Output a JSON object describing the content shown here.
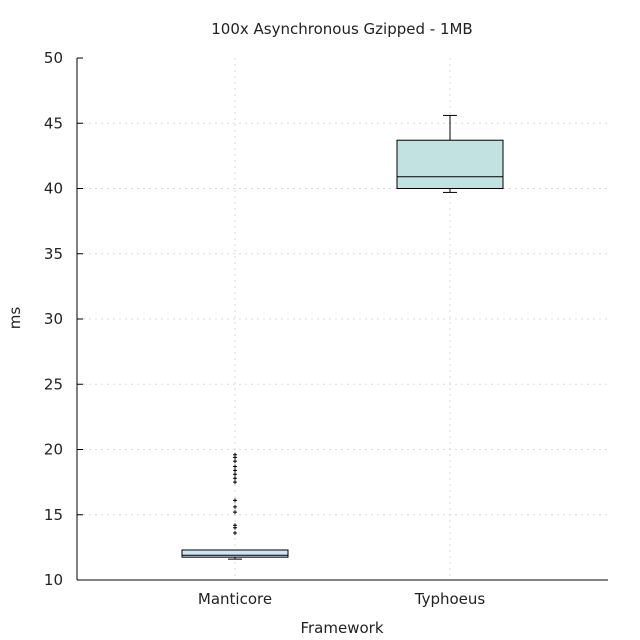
{
  "chart_data": {
    "type": "box",
    "title": "100x Asynchronous Gzipped - 1MB",
    "xlabel": "Framework",
    "ylabel": "ms",
    "categories": [
      "Manticore",
      "Typhoeus"
    ],
    "ylim": [
      10,
      50
    ],
    "yticks": [
      10,
      15,
      20,
      25,
      30,
      35,
      40,
      45,
      50
    ],
    "grid": true,
    "series": [
      {
        "category": "Manticore",
        "whisker_low": 11.6,
        "q1": 11.75,
        "median": 11.9,
        "q3": 12.3,
        "whisker_high": 12.3,
        "outliers": [
          13.6,
          14.0,
          14.2,
          15.2,
          15.6,
          16.1,
          17.5,
          17.8,
          18.1,
          18.4,
          18.7,
          19.1,
          19.4,
          19.6
        ],
        "fill": "#cfe3f7"
      },
      {
        "category": "Typhoeus",
        "whisker_low": 39.7,
        "q1": 40.0,
        "median": 40.9,
        "q3": 43.7,
        "whisker_high": 45.6,
        "outliers": [],
        "fill": "#c2e2e2"
      }
    ]
  }
}
